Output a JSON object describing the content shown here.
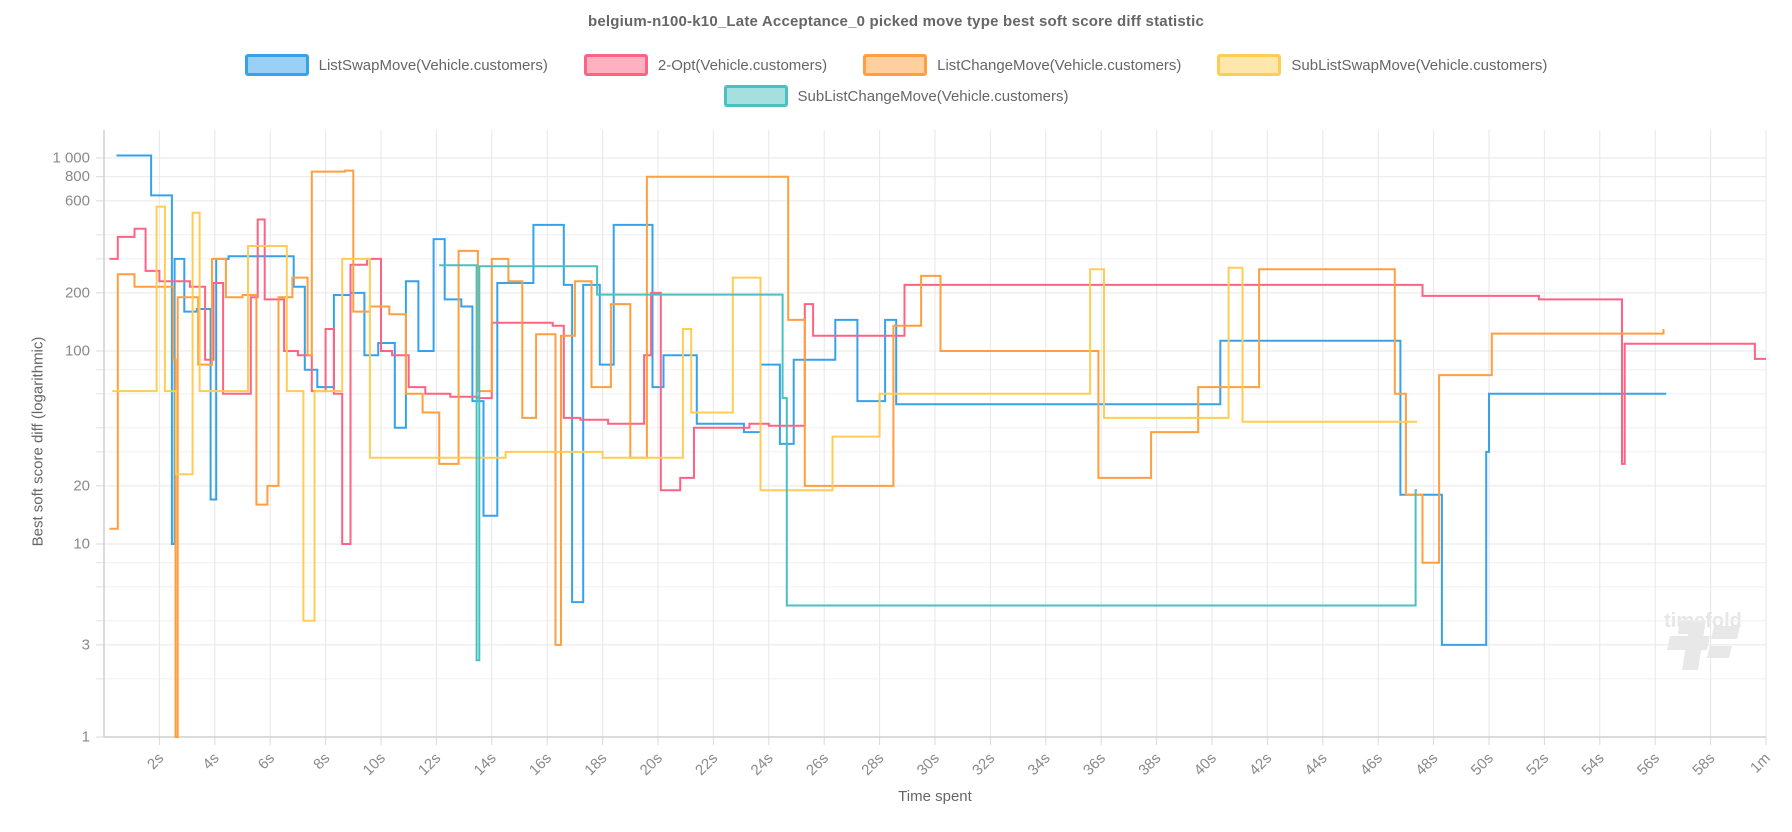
{
  "title": "belgium-n100-k10_Late Acceptance_0 picked move type best soft score diff statistic",
  "watermark": {
    "text": "timefold"
  },
  "chart_data": {
    "type": "line",
    "stepped": true,
    "title": "belgium-n100-k10_Late Acceptance_0 picked move type best soft score diff statistic",
    "xlabel": "Time spent",
    "ylabel": "Best soft score diff (logarithmic)",
    "x_unit": "seconds",
    "xlim": [
      0,
      60
    ],
    "ylim": [
      1,
      1400
    ],
    "y_scale": "log",
    "grid": true,
    "legend_position": "top",
    "x_ticks": [
      {
        "v": 2,
        "label": "2s"
      },
      {
        "v": 4,
        "label": "4s"
      },
      {
        "v": 6,
        "label": "6s"
      },
      {
        "v": 8,
        "label": "8s"
      },
      {
        "v": 10,
        "label": "10s"
      },
      {
        "v": 12,
        "label": "12s"
      },
      {
        "v": 14,
        "label": "14s"
      },
      {
        "v": 16,
        "label": "16s"
      },
      {
        "v": 18,
        "label": "18s"
      },
      {
        "v": 20,
        "label": "20s"
      },
      {
        "v": 22,
        "label": "22s"
      },
      {
        "v": 24,
        "label": "24s"
      },
      {
        "v": 26,
        "label": "26s"
      },
      {
        "v": 28,
        "label": "28s"
      },
      {
        "v": 30,
        "label": "30s"
      },
      {
        "v": 32,
        "label": "32s"
      },
      {
        "v": 34,
        "label": "34s"
      },
      {
        "v": 36,
        "label": "36s"
      },
      {
        "v": 38,
        "label": "38s"
      },
      {
        "v": 40,
        "label": "40s"
      },
      {
        "v": 42,
        "label": "42s"
      },
      {
        "v": 44,
        "label": "44s"
      },
      {
        "v": 46,
        "label": "46s"
      },
      {
        "v": 48,
        "label": "48s"
      },
      {
        "v": 50,
        "label": "50s"
      },
      {
        "v": 52,
        "label": "52s"
      },
      {
        "v": 54,
        "label": "54s"
      },
      {
        "v": 56,
        "label": "56s"
      },
      {
        "v": 58,
        "label": "58s"
      },
      {
        "v": 60,
        "label": "1m"
      }
    ],
    "y_ticks_labeled": [
      {
        "v": 1000,
        "label": "1 000"
      },
      {
        "v": 800,
        "label": "800"
      },
      {
        "v": 600,
        "label": "600"
      },
      {
        "v": 200,
        "label": "200"
      },
      {
        "v": 100,
        "label": "100"
      },
      {
        "v": 20,
        "label": "20"
      },
      {
        "v": 10,
        "label": "10"
      },
      {
        "v": 3,
        "label": "3"
      },
      {
        "v": 1,
        "label": "1"
      }
    ],
    "y_ticks_minor": [
      2,
      4,
      6,
      8,
      30,
      40,
      60,
      80,
      300,
      400
    ],
    "series": [
      {
        "name": "ListSwapMove(Vehicle.customers)",
        "color": "#36A2EB",
        "points": [
          [
            0.45,
            1030
          ],
          [
            1.7,
            640
          ],
          [
            2.45,
            10
          ],
          [
            2.55,
            300
          ],
          [
            2.9,
            160
          ],
          [
            3.35,
            165
          ],
          [
            3.85,
            17
          ],
          [
            4.05,
            300
          ],
          [
            4.5,
            310
          ],
          [
            6.85,
            215
          ],
          [
            7.25,
            80
          ],
          [
            7.7,
            65
          ],
          [
            8.3,
            195
          ],
          [
            8.9,
            200
          ],
          [
            9.4,
            95
          ],
          [
            9.9,
            110
          ],
          [
            10.5,
            40
          ],
          [
            10.9,
            230
          ],
          [
            11.35,
            100
          ],
          [
            11.9,
            380
          ],
          [
            12.3,
            185
          ],
          [
            12.9,
            170
          ],
          [
            13.3,
            55
          ],
          [
            13.7,
            14
          ],
          [
            14.2,
            225
          ],
          [
            15.5,
            450
          ],
          [
            16.6,
            220
          ],
          [
            16.9,
            5
          ],
          [
            17.3,
            220
          ],
          [
            17.9,
            85
          ],
          [
            18.4,
            450
          ],
          [
            19.8,
            65
          ],
          [
            20.2,
            95
          ],
          [
            21.4,
            42
          ],
          [
            23.1,
            38
          ],
          [
            23.7,
            85
          ],
          [
            24.4,
            33
          ],
          [
            24.9,
            90
          ],
          [
            26.4,
            145
          ],
          [
            27.2,
            55
          ],
          [
            28.2,
            145
          ],
          [
            28.6,
            53
          ],
          [
            40.3,
            113
          ],
          [
            46.8,
            18
          ],
          [
            48.3,
            3
          ],
          [
            49.9,
            30
          ],
          [
            50.0,
            60
          ],
          [
            56.4,
            60
          ]
        ]
      },
      {
        "name": "2-Opt(Vehicle.customers)",
        "color": "#FF6384",
        "points": [
          [
            0.2,
            300
          ],
          [
            0.5,
            390
          ],
          [
            1.1,
            430
          ],
          [
            1.5,
            260
          ],
          [
            2.0,
            230
          ],
          [
            3.1,
            215
          ],
          [
            3.65,
            90
          ],
          [
            3.95,
            225
          ],
          [
            4.3,
            60
          ],
          [
            5.3,
            190
          ],
          [
            5.55,
            480
          ],
          [
            5.8,
            185
          ],
          [
            6.5,
            100
          ],
          [
            7.0,
            95
          ],
          [
            7.5,
            62
          ],
          [
            8.0,
            130
          ],
          [
            8.3,
            60
          ],
          [
            8.6,
            10
          ],
          [
            8.9,
            280
          ],
          [
            9.5,
            300
          ],
          [
            10.0,
            100
          ],
          [
            10.4,
            95
          ],
          [
            11.0,
            65
          ],
          [
            11.6,
            60
          ],
          [
            12.5,
            58
          ],
          [
            13.5,
            57
          ],
          [
            14.0,
            140
          ],
          [
            16.2,
            135
          ],
          [
            16.6,
            45
          ],
          [
            17.2,
            44
          ],
          [
            18.2,
            42
          ],
          [
            19.5,
            95
          ],
          [
            19.75,
            200
          ],
          [
            20.1,
            19
          ],
          [
            20.8,
            22
          ],
          [
            21.3,
            40
          ],
          [
            23.3,
            42
          ],
          [
            24.0,
            41
          ],
          [
            25.3,
            175
          ],
          [
            25.6,
            120
          ],
          [
            28.9,
            220
          ],
          [
            47.6,
            193
          ],
          [
            51.8,
            185
          ],
          [
            54.8,
            26
          ],
          [
            54.9,
            109
          ],
          [
            59.4,
            109
          ],
          [
            59.6,
            91
          ],
          [
            60,
            91
          ]
        ]
      },
      {
        "name": "ListChangeMove(Vehicle.customers)",
        "color": "#FF9F40",
        "points": [
          [
            0.2,
            12
          ],
          [
            0.5,
            250
          ],
          [
            1.1,
            215
          ],
          [
            2.2,
            215
          ],
          [
            2.5,
            90
          ],
          [
            2.58,
            1
          ],
          [
            2.66,
            190
          ],
          [
            3.4,
            85
          ],
          [
            3.9,
            300
          ],
          [
            4.4,
            190
          ],
          [
            5.0,
            195
          ],
          [
            5.5,
            16
          ],
          [
            5.9,
            20
          ],
          [
            6.3,
            190
          ],
          [
            6.8,
            240
          ],
          [
            7.35,
            95
          ],
          [
            7.5,
            850
          ],
          [
            8.7,
            860
          ],
          [
            9.0,
            160
          ],
          [
            9.6,
            170
          ],
          [
            10.3,
            155
          ],
          [
            10.9,
            60
          ],
          [
            11.5,
            48
          ],
          [
            12.1,
            26
          ],
          [
            12.8,
            330
          ],
          [
            13.5,
            62
          ],
          [
            14.0,
            300
          ],
          [
            14.6,
            230
          ],
          [
            15.1,
            45
          ],
          [
            15.6,
            122
          ],
          [
            16.3,
            3
          ],
          [
            16.5,
            120
          ],
          [
            17.0,
            230
          ],
          [
            17.6,
            65
          ],
          [
            18.3,
            175
          ],
          [
            19.0,
            28
          ],
          [
            19.6,
            800
          ],
          [
            24.7,
            145
          ],
          [
            25.3,
            20
          ],
          [
            26.8,
            20
          ],
          [
            28.5,
            135
          ],
          [
            29.5,
            245
          ],
          [
            30.2,
            100
          ],
          [
            35.9,
            22
          ],
          [
            37.8,
            38
          ],
          [
            39.5,
            65
          ],
          [
            41.7,
            265
          ],
          [
            46.6,
            60
          ],
          [
            47.0,
            18
          ],
          [
            47.6,
            8
          ],
          [
            48.2,
            75
          ],
          [
            50.1,
            123
          ],
          [
            56.3,
            130
          ]
        ]
      },
      {
        "name": "SubListSwapMove(Vehicle.customers)",
        "color": "#FFCD56",
        "points": [
          [
            0.3,
            62
          ],
          [
            1.9,
            560
          ],
          [
            2.2,
            62
          ],
          [
            2.6,
            23
          ],
          [
            3.2,
            520
          ],
          [
            3.45,
            62
          ],
          [
            5.2,
            350
          ],
          [
            6.6,
            62
          ],
          [
            7.2,
            4
          ],
          [
            7.6,
            62
          ],
          [
            8.6,
            300
          ],
          [
            9.6,
            28
          ],
          [
            14.5,
            30
          ],
          [
            18.0,
            28
          ],
          [
            20.9,
            130
          ],
          [
            21.2,
            48
          ],
          [
            22.7,
            240
          ],
          [
            23.7,
            19
          ],
          [
            26.3,
            36
          ],
          [
            28.0,
            60
          ],
          [
            35.6,
            265
          ],
          [
            36.1,
            45
          ],
          [
            40.6,
            270
          ],
          [
            41.1,
            43
          ],
          [
            47.4,
            43
          ]
        ]
      },
      {
        "name": "SubListChangeMove(Vehicle.customers)",
        "color": "#4BC0C0",
        "points": [
          [
            12.1,
            278
          ],
          [
            13.45,
            2.5
          ],
          [
            13.55,
            275
          ],
          [
            17.8,
            196
          ],
          [
            24.5,
            57
          ],
          [
            24.65,
            4.8
          ],
          [
            47.3,
            4.8
          ],
          [
            47.35,
            19
          ],
          [
            47.4,
            19
          ]
        ]
      }
    ]
  }
}
